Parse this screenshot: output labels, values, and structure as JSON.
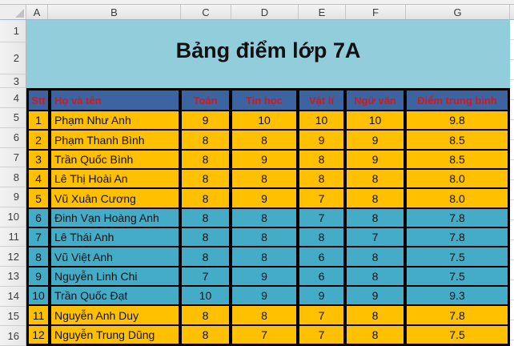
{
  "title": "Bảng điểm lớp 7A",
  "columns": {
    "letters": [
      "A",
      "B",
      "C",
      "D",
      "E",
      "F",
      "G"
    ]
  },
  "row_numbers": [
    "1",
    "2",
    "3",
    "4",
    "5",
    "6",
    "7",
    "8",
    "9",
    "10",
    "11",
    "12",
    "13",
    "14",
    "15",
    "16"
  ],
  "table": {
    "headers": [
      "Stt",
      "Họ và tên",
      "Toán",
      "Tin học",
      "Vật lí",
      "Ngữ văn",
      "Điểm trung bình"
    ],
    "rows": [
      {
        "stt": "1",
        "name": "Phạm Như Anh",
        "toan": "9",
        "tinhoc": "10",
        "vatli": "10",
        "nguvan": "10",
        "avg": "9.8",
        "band": "orange"
      },
      {
        "stt": "2",
        "name": "Phạm Thanh Bình",
        "toan": "8",
        "tinhoc": "8",
        "vatli": "9",
        "nguvan": "9",
        "avg": "8.5",
        "band": "orange"
      },
      {
        "stt": "3",
        "name": "Trần Quốc Bình",
        "toan": "8",
        "tinhoc": "9",
        "vatli": "8",
        "nguvan": "9",
        "avg": "8.5",
        "band": "orange"
      },
      {
        "stt": "4",
        "name": "Lê Thị Hoài An",
        "toan": "8",
        "tinhoc": "8",
        "vatli": "8",
        "nguvan": "8",
        "avg": "8.0",
        "band": "orange"
      },
      {
        "stt": "5",
        "name": "Vũ Xuân Cương",
        "toan": "8",
        "tinhoc": "9",
        "vatli": "7",
        "nguvan": "8",
        "avg": "8.0",
        "band": "orange"
      },
      {
        "stt": "6",
        "name": "Đinh Vạn Hoàng Anh",
        "toan": "8",
        "tinhoc": "8",
        "vatli": "7",
        "nguvan": "8",
        "avg": "7.8",
        "band": "teal"
      },
      {
        "stt": "7",
        "name": "Lê Thái Anh",
        "toan": "8",
        "tinhoc": "8",
        "vatli": "8",
        "nguvan": "7",
        "avg": "7.8",
        "band": "teal"
      },
      {
        "stt": "8",
        "name": "Vũ Việt Anh",
        "toan": "8",
        "tinhoc": "8",
        "vatli": "6",
        "nguvan": "8",
        "avg": "7.5",
        "band": "teal"
      },
      {
        "stt": "9",
        "name": "Nguyễn Linh Chi",
        "toan": "7",
        "tinhoc": "9",
        "vatli": "6",
        "nguvan": "8",
        "avg": "7.5",
        "band": "teal"
      },
      {
        "stt": "10",
        "name": "Trần Quốc Đạt",
        "toan": "10",
        "tinhoc": "9",
        "vatli": "9",
        "nguvan": "9",
        "avg": "9.3",
        "band": "teal"
      },
      {
        "stt": "11",
        "name": "Nguyễn Anh Duy",
        "toan": "8",
        "tinhoc": "8",
        "vatli": "7",
        "nguvan": "8",
        "avg": "7.8",
        "band": "orange"
      },
      {
        "stt": "12",
        "name": "Nguyễn Trung Dũng",
        "toan": "8",
        "tinhoc": "7",
        "vatli": "7",
        "nguvan": "8",
        "avg": "7.5",
        "band": "orange"
      }
    ]
  },
  "colors": {
    "title_bg": "#92CDDC",
    "header_bg": "#3C64A0",
    "header_text": "#E01414",
    "band_orange": "#FFC000",
    "band_teal": "#45ACC8"
  }
}
